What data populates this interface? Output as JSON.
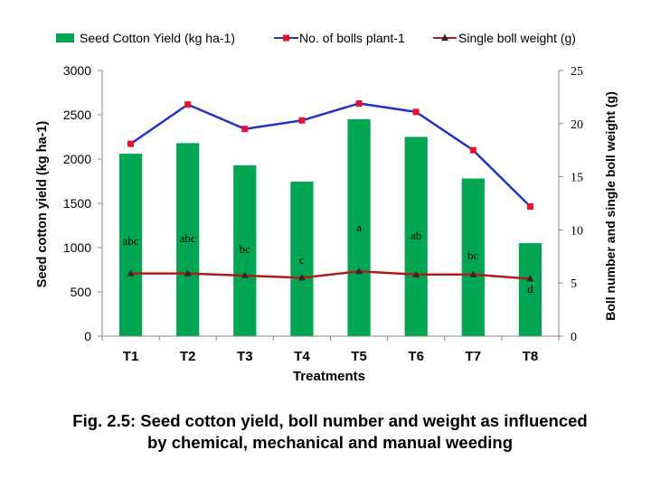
{
  "chart_data": {
    "type": "bar",
    "categories": [
      "T1",
      "T2",
      "T3",
      "T4",
      "T5",
      "T6",
      "T7",
      "T8"
    ],
    "xlabel": "Treatments",
    "ylabel": "Seed cotton yield (kg ha-1)",
    "y2label": "Boll number and single boll weight (g)",
    "ylim": [
      0,
      3000
    ],
    "y2lim": [
      0,
      25
    ],
    "yticks": [
      "0",
      "500",
      "1000",
      "1500",
      "2000",
      "2500",
      "3000"
    ],
    "y2ticks": [
      "0",
      "5",
      "10",
      "15",
      "20",
      "25"
    ],
    "legend_position": "top",
    "grid": false,
    "series": [
      {
        "name": "Seed Cotton Yield  (kg ha-1)",
        "kind": "bar",
        "axis": "left",
        "color": "#00A651",
        "values": [
          2060,
          2180,
          1930,
          1745,
          2450,
          2250,
          1780,
          1050
        ],
        "labels": [
          "abc",
          "abc",
          "bc",
          "c",
          "a",
          "ab",
          "bc",
          "d"
        ]
      },
      {
        "name": "No. of bolls plant-1",
        "kind": "line",
        "axis": "right",
        "color": "#2233CC",
        "marker_color": "#E8102A",
        "values": [
          18.1,
          21.8,
          19.5,
          20.3,
          21.9,
          21.1,
          17.5,
          12.2
        ]
      },
      {
        "name": "Single boll weight (g)",
        "kind": "line",
        "axis": "right",
        "color": "#B01C1C",
        "marker_color": "#2A2A2A",
        "values": [
          5.9,
          5.9,
          5.7,
          5.5,
          6.1,
          5.8,
          5.8,
          5.4
        ]
      }
    ]
  },
  "caption": {
    "line1": "Fig. 2.5: Seed cotton yield, boll number and weight as influenced",
    "line2": "by chemical, mechanical and manual weeding"
  }
}
